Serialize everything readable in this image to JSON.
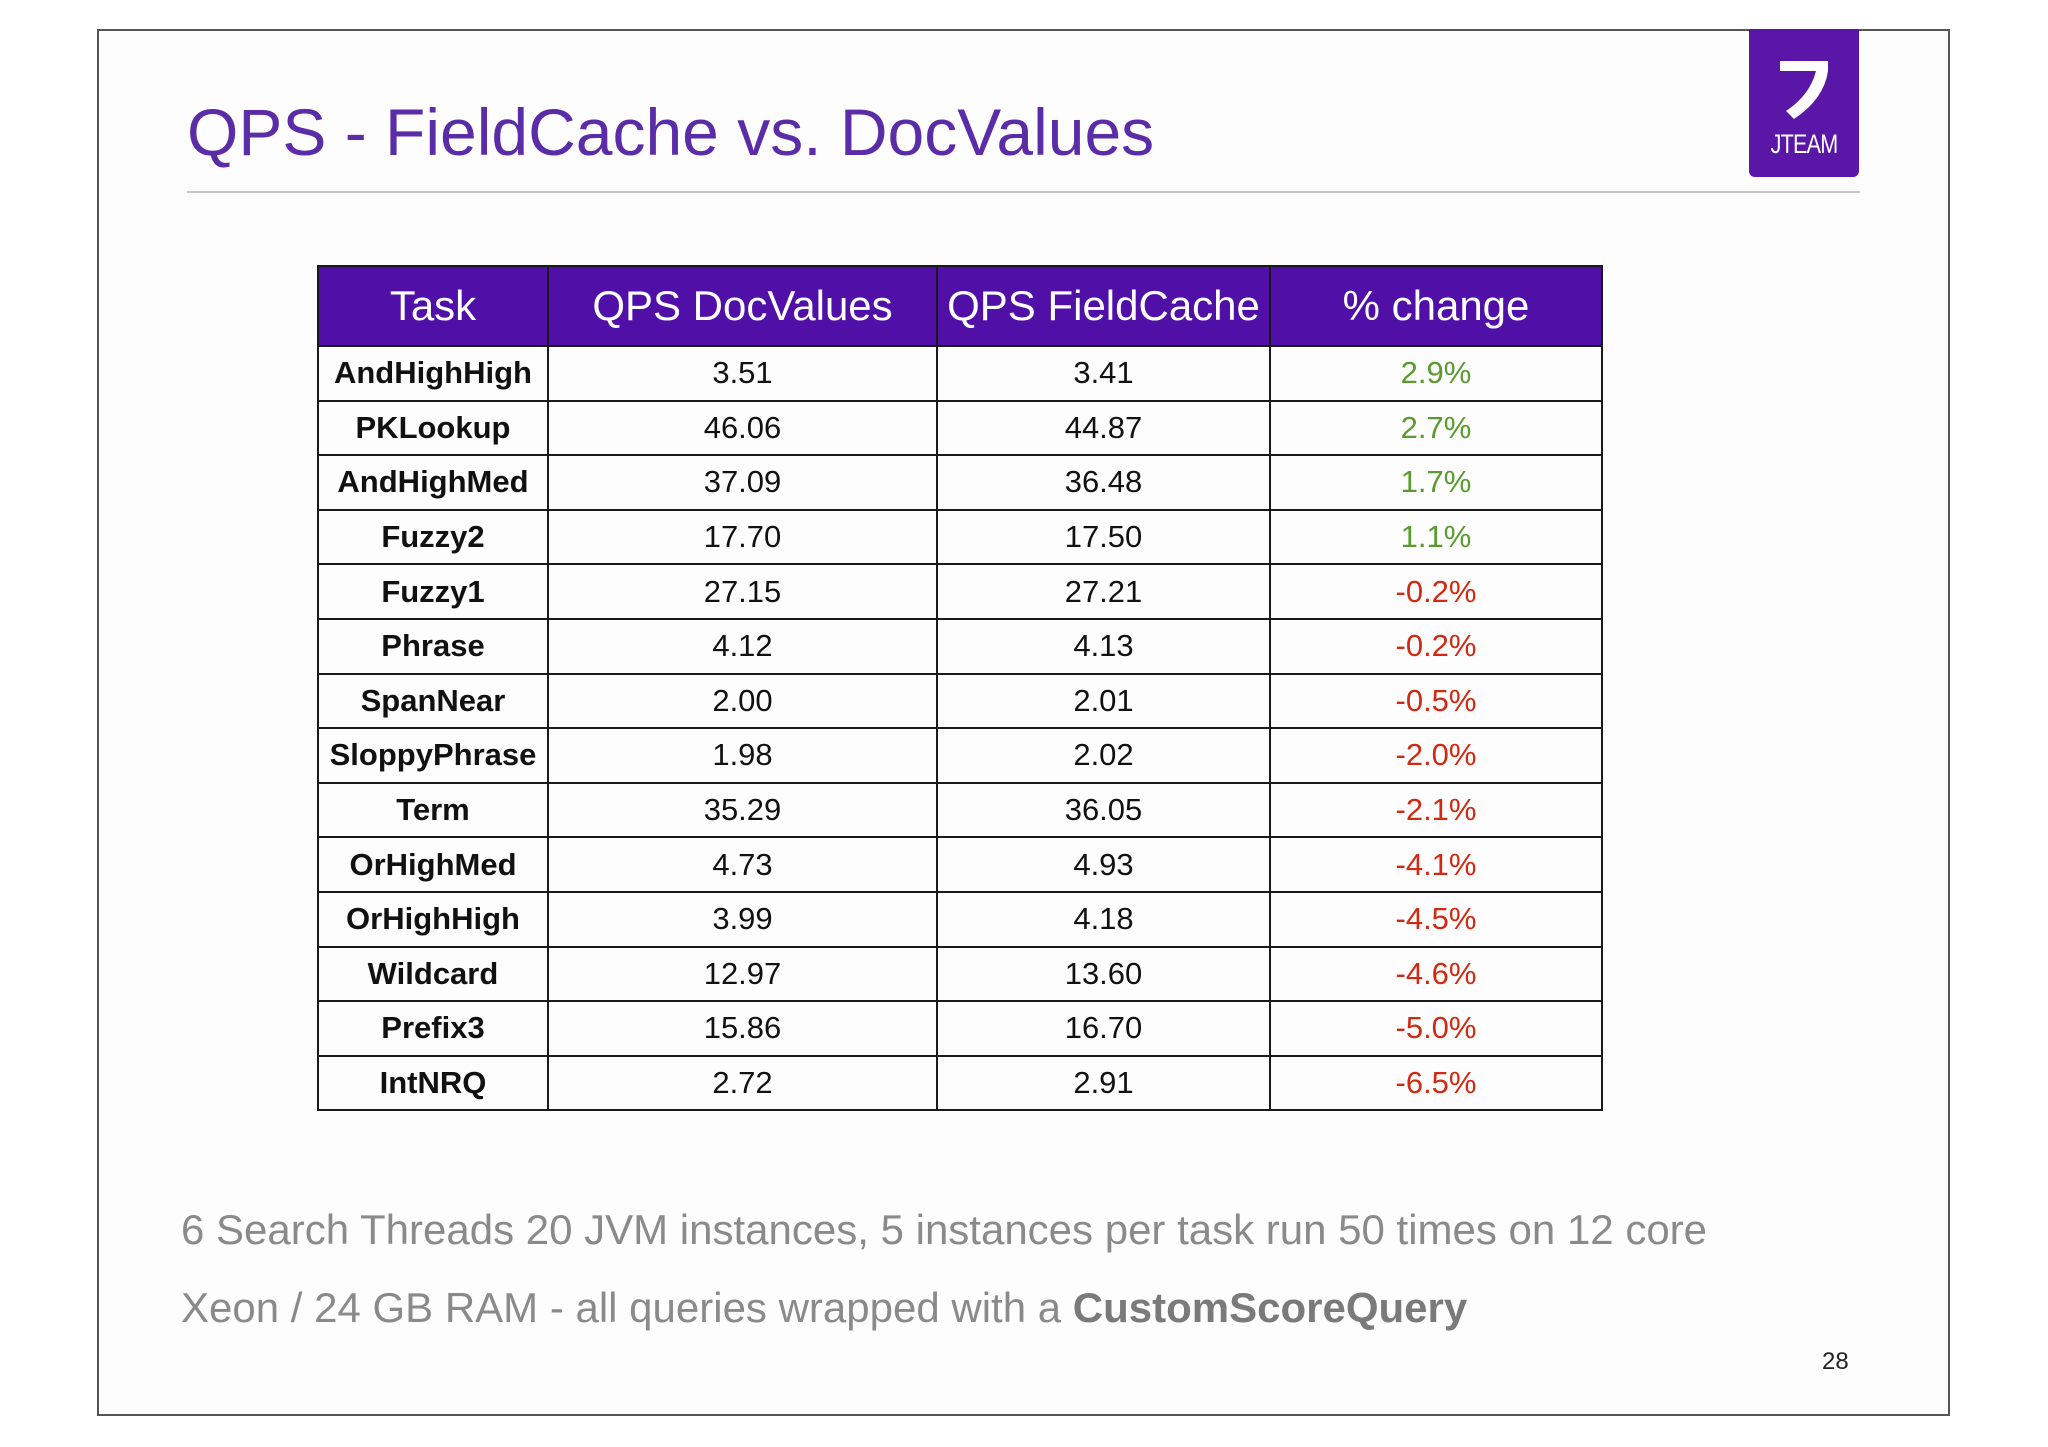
{
  "slide": {
    "title": "QPS - FieldCache vs. DocValues",
    "logo_text": "JTEAM",
    "page_number": "28"
  },
  "table": {
    "headers": [
      "Task",
      "QPS DocValues",
      "QPS FieldCache",
      "% change"
    ],
    "rows": [
      {
        "task": "AndHighHigh",
        "docvalues": "3.51",
        "fieldcache": "3.41",
        "change": "2.9%"
      },
      {
        "task": "PKLookup",
        "docvalues": "46.06",
        "fieldcache": "44.87",
        "change": "2.7%"
      },
      {
        "task": "AndHighMed",
        "docvalues": "37.09",
        "fieldcache": "36.48",
        "change": "1.7%"
      },
      {
        "task": "Fuzzy2",
        "docvalues": "17.70",
        "fieldcache": "17.50",
        "change": "1.1%"
      },
      {
        "task": "Fuzzy1",
        "docvalues": "27.15",
        "fieldcache": "27.21",
        "change": "-0.2%"
      },
      {
        "task": "Phrase",
        "docvalues": "4.12",
        "fieldcache": "4.13",
        "change": "-0.2%"
      },
      {
        "task": "SpanNear",
        "docvalues": "2.00",
        "fieldcache": "2.01",
        "change": "-0.5%"
      },
      {
        "task": "SloppyPhrase",
        "docvalues": "1.98",
        "fieldcache": "2.02",
        "change": "-2.0%"
      },
      {
        "task": "Term",
        "docvalues": "35.29",
        "fieldcache": "36.05",
        "change": "-2.1%"
      },
      {
        "task": "OrHighMed",
        "docvalues": "4.73",
        "fieldcache": "4.93",
        "change": "-4.1%"
      },
      {
        "task": "OrHighHigh",
        "docvalues": "3.99",
        "fieldcache": "4.18",
        "change": "-4.5%"
      },
      {
        "task": "Wildcard",
        "docvalues": "12.97",
        "fieldcache": "13.60",
        "change": "-4.6%"
      },
      {
        "task": "Prefix3",
        "docvalues": "15.86",
        "fieldcache": "16.70",
        "change": "-5.0%"
      },
      {
        "task": "IntNRQ",
        "docvalues": "2.72",
        "fieldcache": "2.91",
        "change": "-6.5%"
      }
    ]
  },
  "footnote": {
    "line1": "6 Search Threads 20 JVM instances, 5 instances per task run 50 times on 12 core",
    "line2_prefix": "Xeon / 24 GB RAM - all queries wrapped with a ",
    "line2_bold": "CustomScoreQuery"
  },
  "colors": {
    "title": "#5a2ca8",
    "header_bg": "#5010a8",
    "positive": "#5b9a2f",
    "negative": "#d12a12",
    "logo_bg": "#5a16a6"
  }
}
